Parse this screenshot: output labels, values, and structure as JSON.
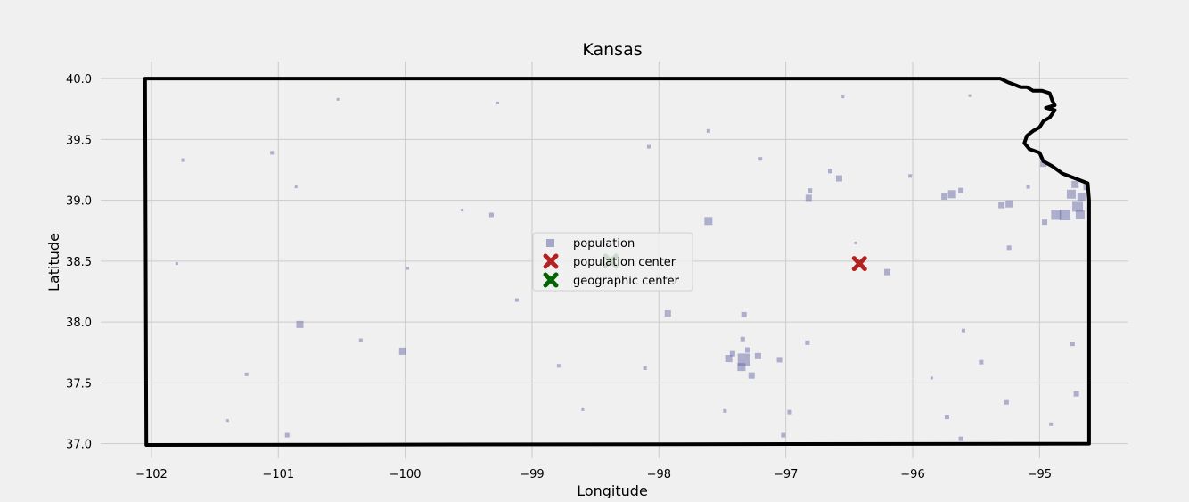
{
  "chart_data": {
    "type": "scatter",
    "title": "Kansas",
    "xlabel": "Longitude",
    "ylabel": "Latitude",
    "xlim": [
      -102.4,
      -94.3
    ],
    "ylim": [
      36.88,
      40.14
    ],
    "xticks": [
      -102,
      -101,
      -100,
      -99,
      -98,
      -97,
      -96,
      -95
    ],
    "xtick_labels": [
      "−102",
      "−101",
      "−100",
      "−99",
      "−98",
      "−97",
      "−96",
      "−95"
    ],
    "yticks": [
      37.0,
      37.5,
      38.0,
      38.5,
      39.0,
      39.5,
      40.0
    ],
    "ytick_labels": [
      "37.0",
      "37.5",
      "38.0",
      "38.5",
      "39.0",
      "39.5",
      "40.0"
    ],
    "grid": true,
    "legend_position": "center",
    "colors": {
      "population": "#6a6aa8",
      "population_center": "#b22222",
      "geographic_center": "#006400",
      "border": "#000000",
      "background": "#f0f0f0",
      "grid": "#cbcbcb"
    },
    "border": [
      [
        -102.05,
        40.0
      ],
      [
        -95.31,
        40.0
      ],
      [
        -95.25,
        39.97
      ],
      [
        -95.2,
        39.95
      ],
      [
        -95.15,
        39.93
      ],
      [
        -95.1,
        39.93
      ],
      [
        -95.05,
        39.9
      ],
      [
        -94.98,
        39.9
      ],
      [
        -94.92,
        39.88
      ],
      [
        -94.9,
        39.82
      ],
      [
        -94.88,
        39.78
      ],
      [
        -94.95,
        39.76
      ],
      [
        -94.88,
        39.74
      ],
      [
        -94.92,
        39.68
      ],
      [
        -94.97,
        39.65
      ],
      [
        -95.0,
        39.6
      ],
      [
        -95.05,
        39.57
      ],
      [
        -95.1,
        39.53
      ],
      [
        -95.12,
        39.47
      ],
      [
        -95.08,
        39.42
      ],
      [
        -95.0,
        39.39
      ],
      [
        -94.97,
        39.32
      ],
      [
        -94.9,
        39.28
      ],
      [
        -94.82,
        39.22
      ],
      [
        -94.72,
        39.18
      ],
      [
        -94.62,
        39.14
      ],
      [
        -94.61,
        39.0
      ],
      [
        -94.61,
        37.0
      ],
      [
        -102.04,
        36.99
      ],
      [
        -102.05,
        40.0
      ]
    ],
    "series": [
      {
        "name": "population",
        "marker": "square",
        "points": [
          {
            "x": -101.75,
            "y": 39.33,
            "s": 4
          },
          {
            "x": -101.05,
            "y": 39.39,
            "s": 4
          },
          {
            "x": -100.83,
            "y": 37.98,
            "s": 8
          },
          {
            "x": -100.02,
            "y": 37.76,
            "s": 8
          },
          {
            "x": -100.93,
            "y": 37.07,
            "s": 5
          },
          {
            "x": -99.32,
            "y": 38.88,
            "s": 5
          },
          {
            "x": -99.12,
            "y": 38.18,
            "s": 4
          },
          {
            "x": -98.79,
            "y": 37.64,
            "s": 4
          },
          {
            "x": -97.93,
            "y": 38.07,
            "s": 7
          },
          {
            "x": -97.61,
            "y": 38.83,
            "s": 9
          },
          {
            "x": -97.33,
            "y": 38.06,
            "s": 6
          },
          {
            "x": -97.61,
            "y": 39.57,
            "s": 4
          },
          {
            "x": -97.33,
            "y": 37.69,
            "s": 14
          },
          {
            "x": -97.27,
            "y": 37.56,
            "s": 7
          },
          {
            "x": -97.35,
            "y": 37.63,
            "s": 9
          },
          {
            "x": -97.45,
            "y": 37.7,
            "s": 8
          },
          {
            "x": -97.22,
            "y": 37.72,
            "s": 7
          },
          {
            "x": -97.42,
            "y": 37.74,
            "s": 6
          },
          {
            "x": -97.3,
            "y": 37.77,
            "s": 6
          },
          {
            "x": -97.34,
            "y": 37.86,
            "s": 5
          },
          {
            "x": -97.05,
            "y": 37.69,
            "s": 6
          },
          {
            "x": -96.97,
            "y": 37.26,
            "s": 5
          },
          {
            "x": -97.02,
            "y": 37.07,
            "s": 5
          },
          {
            "x": -96.83,
            "y": 37.83,
            "s": 5
          },
          {
            "x": -96.82,
            "y": 39.02,
            "s": 7
          },
          {
            "x": -96.58,
            "y": 39.18,
            "s": 7
          },
          {
            "x": -96.65,
            "y": 39.24,
            "s": 5
          },
          {
            "x": -96.2,
            "y": 38.41,
            "s": 7
          },
          {
            "x": -95.24,
            "y": 38.97,
            "s": 8
          },
          {
            "x": -95.3,
            "y": 38.96,
            "s": 7
          },
          {
            "x": -95.24,
            "y": 38.61,
            "s": 5
          },
          {
            "x": -95.69,
            "y": 39.05,
            "s": 9
          },
          {
            "x": -95.75,
            "y": 39.03,
            "s": 7
          },
          {
            "x": -95.62,
            "y": 39.08,
            "s": 6
          },
          {
            "x": -94.97,
            "y": 39.3,
            "s": 7
          },
          {
            "x": -94.8,
            "y": 38.88,
            "s": 12
          },
          {
            "x": -94.87,
            "y": 38.88,
            "s": 11
          },
          {
            "x": -94.7,
            "y": 38.95,
            "s": 12
          },
          {
            "x": -94.68,
            "y": 38.88,
            "s": 10
          },
          {
            "x": -94.75,
            "y": 39.05,
            "s": 10
          },
          {
            "x": -94.67,
            "y": 39.03,
            "s": 9
          },
          {
            "x": -94.72,
            "y": 39.13,
            "s": 8
          },
          {
            "x": -94.63,
            "y": 39.11,
            "s": 7
          },
          {
            "x": -94.96,
            "y": 38.82,
            "s": 6
          },
          {
            "x": -94.71,
            "y": 37.41,
            "s": 6
          },
          {
            "x": -94.74,
            "y": 37.82,
            "s": 5
          },
          {
            "x": -95.73,
            "y": 37.22,
            "s": 5
          },
          {
            "x": -95.46,
            "y": 37.67,
            "s": 5
          },
          {
            "x": -95.26,
            "y": 37.34,
            "s": 5
          },
          {
            "x": -95.62,
            "y": 37.04,
            "s": 5
          },
          {
            "x": -96.81,
            "y": 39.08,
            "s": 5
          },
          {
            "x": -98.08,
            "y": 39.44,
            "s": 4
          },
          {
            "x": -99.55,
            "y": 38.92,
            "s": 3
          },
          {
            "x": -100.86,
            "y": 39.11,
            "s": 3
          },
          {
            "x": -101.8,
            "y": 38.48,
            "s": 3
          },
          {
            "x": -100.35,
            "y": 37.85,
            "s": 4
          },
          {
            "x": -99.98,
            "y": 38.44,
            "s": 3
          },
          {
            "x": -98.6,
            "y": 37.28,
            "s": 3
          },
          {
            "x": -97.2,
            "y": 39.34,
            "s": 4
          },
          {
            "x": -97.86,
            "y": 38.36,
            "s": 4
          },
          {
            "x": -98.11,
            "y": 37.62,
            "s": 4
          },
          {
            "x": -96.02,
            "y": 39.2,
            "s": 4
          },
          {
            "x": -95.6,
            "y": 37.93,
            "s": 4
          },
          {
            "x": -95.09,
            "y": 39.11,
            "s": 4
          },
          {
            "x": -94.91,
            "y": 37.16,
            "s": 4
          },
          {
            "x": -101.25,
            "y": 37.57,
            "s": 4
          },
          {
            "x": -101.4,
            "y": 37.19,
            "s": 3
          },
          {
            "x": -100.53,
            "y": 39.83,
            "s": 3
          },
          {
            "x": -99.27,
            "y": 39.8,
            "s": 3
          },
          {
            "x": -96.55,
            "y": 39.85,
            "s": 3
          },
          {
            "x": -95.55,
            "y": 39.86,
            "s": 3
          },
          {
            "x": -97.48,
            "y": 37.27,
            "s": 4
          },
          {
            "x": -96.45,
            "y": 38.65,
            "s": 3
          },
          {
            "x": -95.85,
            "y": 37.54,
            "s": 3
          }
        ]
      },
      {
        "name": "population center",
        "marker": "x",
        "points": [
          {
            "x": -96.42,
            "y": 38.48
          }
        ]
      },
      {
        "name": "geographic center",
        "marker": "x",
        "points": [
          {
            "x": -98.38,
            "y": 38.5
          }
        ]
      }
    ]
  }
}
